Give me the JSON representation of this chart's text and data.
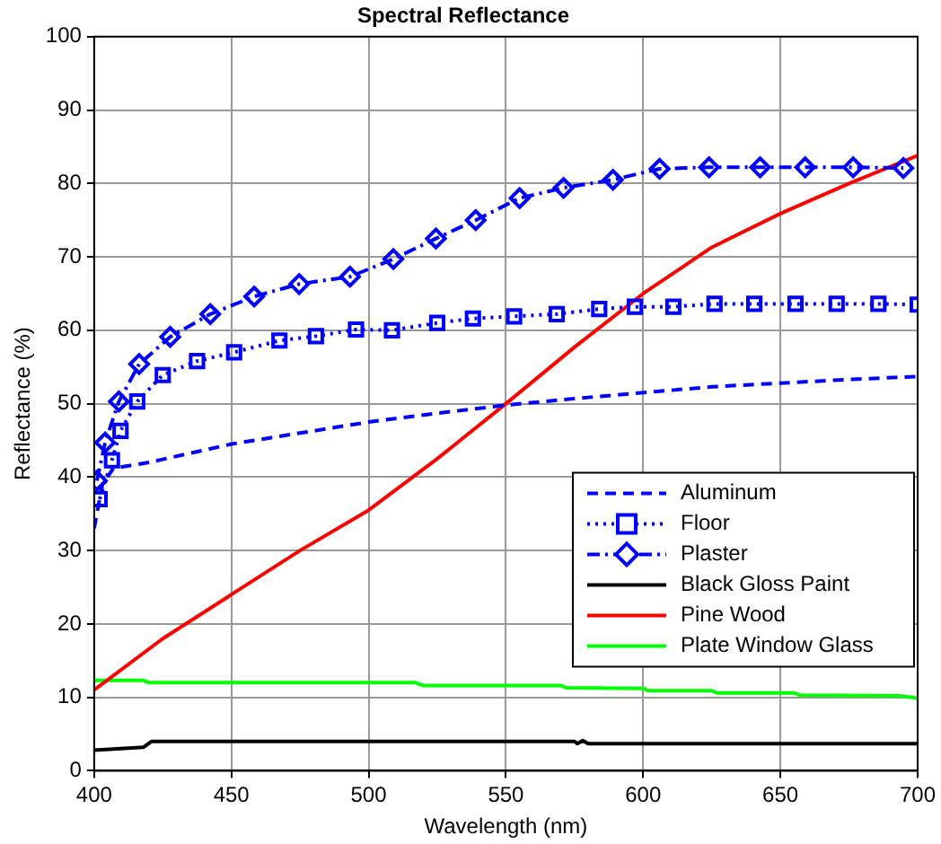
{
  "chart_data": {
    "type": "line",
    "title": "Spectral Reflectance",
    "xlabel": "Wavelength (nm)",
    "ylabel": "Reflectance (%)",
    "xlim": [
      400,
      700
    ],
    "xticks": [
      400,
      450,
      500,
      550,
      600,
      650,
      700
    ],
    "ylim": [
      0,
      100
    ],
    "yticks": [
      0,
      10,
      20,
      30,
      40,
      50,
      60,
      70,
      80,
      90,
      100
    ],
    "grid": true,
    "legend": "bottom right",
    "series": [
      {
        "name": "Aluminum",
        "color": "#0000ff",
        "line_style": "dashed",
        "marker": "none",
        "x": [
          400,
          403,
          407,
          420,
          450,
          475,
          500,
          525,
          550,
          575,
          600,
          625,
          650,
          675,
          700
        ],
        "values": [
          33,
          39,
          41.2,
          42,
          44.5,
          46,
          47.5,
          48.7,
          49.8,
          50.7,
          51.5,
          52.3,
          52.8,
          53.3,
          53.7
        ]
      },
      {
        "name": "Floor",
        "color": "#0000ff",
        "line_style": "dotted",
        "marker": "square",
        "x": [
          402,
          406.5,
          409.6,
          415.7,
          425,
          437.5,
          451,
          467.5,
          480.8,
          495.4,
          508.5,
          525,
          538,
          553,
          568.5,
          584,
          597,
          611,
          626,
          640.5,
          655.5,
          670.5,
          685.7,
          700
        ],
        "values": [
          37,
          42.3,
          46.3,
          50.3,
          53.9,
          55.8,
          57,
          58.6,
          59.2,
          60.1,
          60,
          61,
          61.6,
          61.9,
          62.2,
          62.9,
          63.2,
          63.2,
          63.6,
          63.6,
          63.6,
          63.6,
          63.6,
          63.5
        ]
      },
      {
        "name": "Plaster",
        "color": "#0000ff",
        "line_style": "dashdot",
        "marker": "diamond",
        "x": [
          401,
          404,
          409,
          416.4,
          427.7,
          442.3,
          458.3,
          474.7,
          493.2,
          509,
          524.5,
          539,
          555,
          571,
          589,
          606,
          624,
          642.6,
          659,
          676.5,
          694.8
        ],
        "values": [
          39.5,
          44.7,
          50.3,
          55.4,
          59.1,
          62.2,
          64.6,
          66.3,
          67.3,
          69.7,
          72.5,
          75,
          78,
          79.4,
          80.5,
          82,
          82.2,
          82.2,
          82.2,
          82.2,
          82.1
        ]
      },
      {
        "name": "Black Gloss Paint",
        "color": "#000000",
        "line_style": "solid",
        "marker": "none",
        "x": [
          400,
          418,
          421,
          575,
          576,
          578,
          580,
          700
        ],
        "values": [
          2.8,
          3.2,
          4,
          4,
          3.7,
          4.1,
          3.7,
          3.7
        ]
      },
      {
        "name": "Pine Wood",
        "color": "#ff0000",
        "line_style": "solid",
        "marker": "none",
        "x": [
          400,
          425,
          450,
          475,
          500,
          525,
          550,
          575,
          600,
          625,
          650,
          675,
          700
        ],
        "values": [
          11,
          18,
          24,
          30,
          35.5,
          42.5,
          50,
          57.7,
          65,
          71.3,
          75.9,
          80,
          83.8
        ]
      },
      {
        "name": "Plate Window Glass",
        "color": "#00ff00",
        "line_style": "solid",
        "marker": "none",
        "x": [
          400,
          418,
          420,
          517,
          520,
          570,
          572,
          600,
          602,
          625,
          627,
          655,
          657,
          693,
          700
        ],
        "values": [
          12.3,
          12.3,
          12,
          12,
          11.6,
          11.6,
          11.3,
          11.2,
          10.9,
          10.9,
          10.6,
          10.6,
          10.3,
          10.2,
          9.9
        ]
      }
    ]
  }
}
